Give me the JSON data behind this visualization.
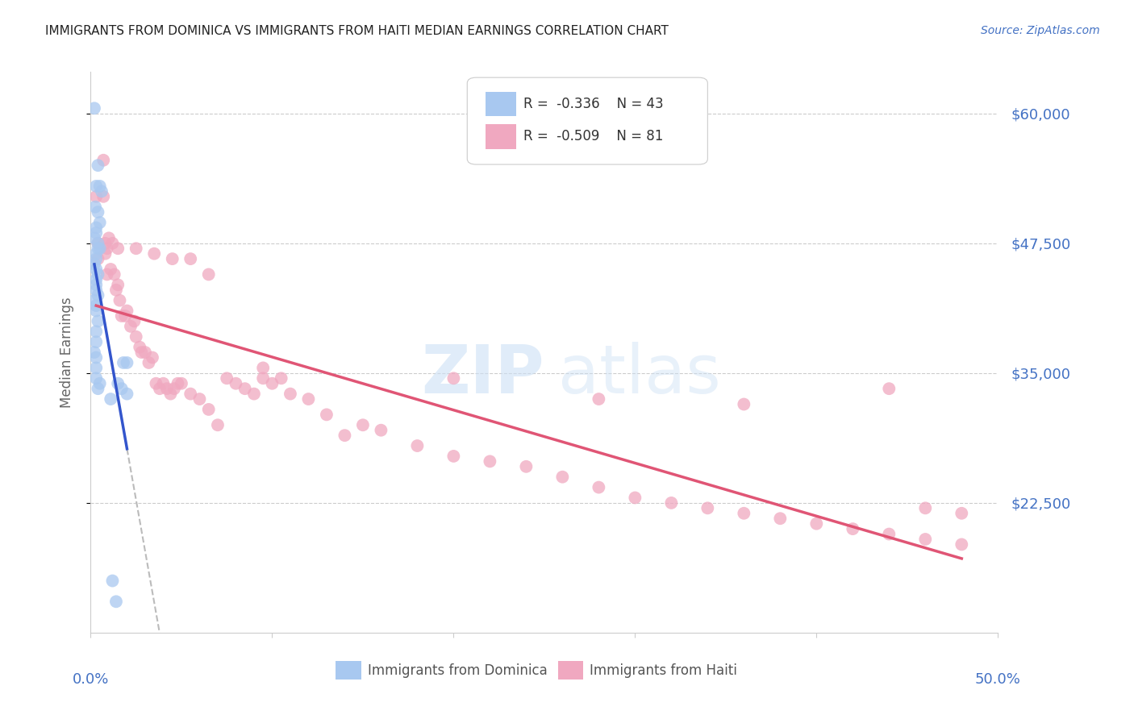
{
  "title": "IMMIGRANTS FROM DOMINICA VS IMMIGRANTS FROM HAITI MEDIAN EARNINGS CORRELATION CHART",
  "source": "Source: ZipAtlas.com",
  "ylabel": "Median Earnings",
  "yticks": [
    22500,
    35000,
    47500,
    60000
  ],
  "ytick_labels": [
    "$22,500",
    "$35,000",
    "$47,500",
    "$60,000"
  ],
  "xmin": 0.0,
  "xmax": 0.5,
  "ymin": 10000,
  "ymax": 64000,
  "legend_r_dominica": "-0.336",
  "legend_n_dominica": "43",
  "legend_r_haiti": "-0.509",
  "legend_n_haiti": "81",
  "dominica_color": "#a8c8f0",
  "haiti_color": "#f0a8c0",
  "dominica_line_color": "#3355cc",
  "haiti_line_color": "#e05575",
  "dominica_x": [
    0.002,
    0.004,
    0.003,
    0.005,
    0.006,
    0.0025,
    0.004,
    0.005,
    0.003,
    0.003,
    0.002,
    0.004,
    0.004,
    0.005,
    0.003,
    0.003,
    0.002,
    0.003,
    0.004,
    0.003,
    0.003,
    0.003,
    0.004,
    0.002,
    0.003,
    0.003,
    0.004,
    0.003,
    0.003,
    0.002,
    0.003,
    0.003,
    0.003,
    0.005,
    0.004,
    0.018,
    0.02,
    0.011,
    0.012,
    0.014,
    0.015,
    0.017,
    0.02
  ],
  "dominica_y": [
    60500,
    55000,
    53000,
    53000,
    52500,
    51000,
    50500,
    49500,
    49000,
    48500,
    48000,
    47500,
    47000,
    47000,
    46500,
    46000,
    45500,
    45000,
    44500,
    44000,
    43500,
    43000,
    42500,
    42000,
    41500,
    41000,
    40000,
    39000,
    38000,
    37000,
    36500,
    35500,
    34500,
    34000,
    33500,
    36000,
    33000,
    32500,
    15000,
    13000,
    34000,
    33500,
    36000
  ],
  "haiti_x": [
    0.003,
    0.007,
    0.008,
    0.004,
    0.01,
    0.012,
    0.009,
    0.008,
    0.011,
    0.013,
    0.015,
    0.014,
    0.016,
    0.017,
    0.019,
    0.02,
    0.022,
    0.024,
    0.025,
    0.027,
    0.028,
    0.03,
    0.032,
    0.034,
    0.036,
    0.038,
    0.04,
    0.042,
    0.044,
    0.046,
    0.048,
    0.05,
    0.055,
    0.06,
    0.065,
    0.07,
    0.075,
    0.08,
    0.085,
    0.09,
    0.095,
    0.1,
    0.11,
    0.12,
    0.13,
    0.14,
    0.15,
    0.16,
    0.18,
    0.2,
    0.22,
    0.24,
    0.26,
    0.28,
    0.3,
    0.32,
    0.34,
    0.36,
    0.38,
    0.4,
    0.42,
    0.44,
    0.46,
    0.48,
    0.004,
    0.007,
    0.009,
    0.015,
    0.025,
    0.035,
    0.045,
    0.055,
    0.065,
    0.095,
    0.105,
    0.2,
    0.28,
    0.36,
    0.44,
    0.46,
    0.48
  ],
  "haiti_y": [
    52000,
    55500,
    47500,
    46000,
    48000,
    47500,
    44500,
    46500,
    45000,
    44500,
    43500,
    43000,
    42000,
    40500,
    40500,
    41000,
    39500,
    40000,
    38500,
    37500,
    37000,
    37000,
    36000,
    36500,
    34000,
    33500,
    34000,
    33500,
    33000,
    33500,
    34000,
    34000,
    33000,
    32500,
    31500,
    30000,
    34500,
    34000,
    33500,
    33000,
    34500,
    34000,
    33000,
    32500,
    31000,
    29000,
    30000,
    29500,
    28000,
    27000,
    26500,
    26000,
    25000,
    24000,
    23000,
    22500,
    22000,
    21500,
    21000,
    20500,
    20000,
    19500,
    19000,
    18500,
    47500,
    52000,
    47000,
    47000,
    47000,
    46500,
    46000,
    46000,
    44500,
    35500,
    34500,
    34500,
    32500,
    32000,
    33500,
    22000,
    21500
  ]
}
